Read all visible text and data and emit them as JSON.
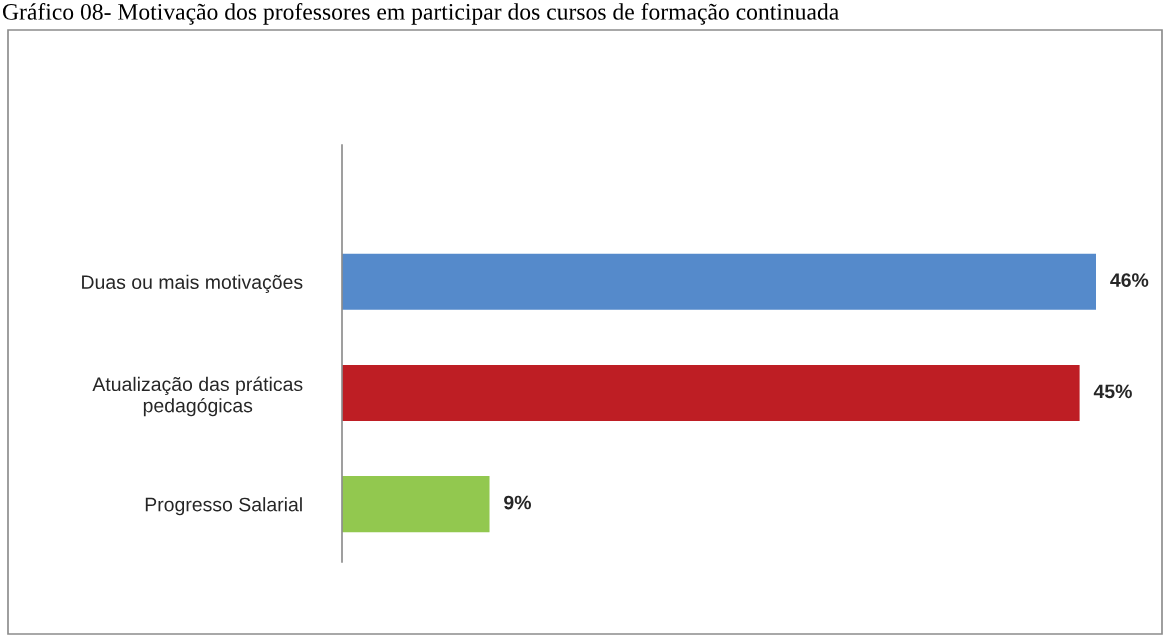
{
  "chart_data": {
    "type": "bar",
    "orientation": "horizontal",
    "title": "Gráfico 08- Motivação dos professores em participar dos cursos de formação continuada",
    "categories": [
      "Duas ou mais motivações",
      "Atualização das práticas\npedagógicas",
      "Progresso Salarial"
    ],
    "values": [
      46,
      45,
      9
    ],
    "colors": [
      "#558acb",
      "#be1e24",
      "#92c84f"
    ],
    "value_labels": [
      "46%",
      "45%",
      "9%"
    ],
    "grid": false,
    "legend": false,
    "tick_labels": "y"
  }
}
